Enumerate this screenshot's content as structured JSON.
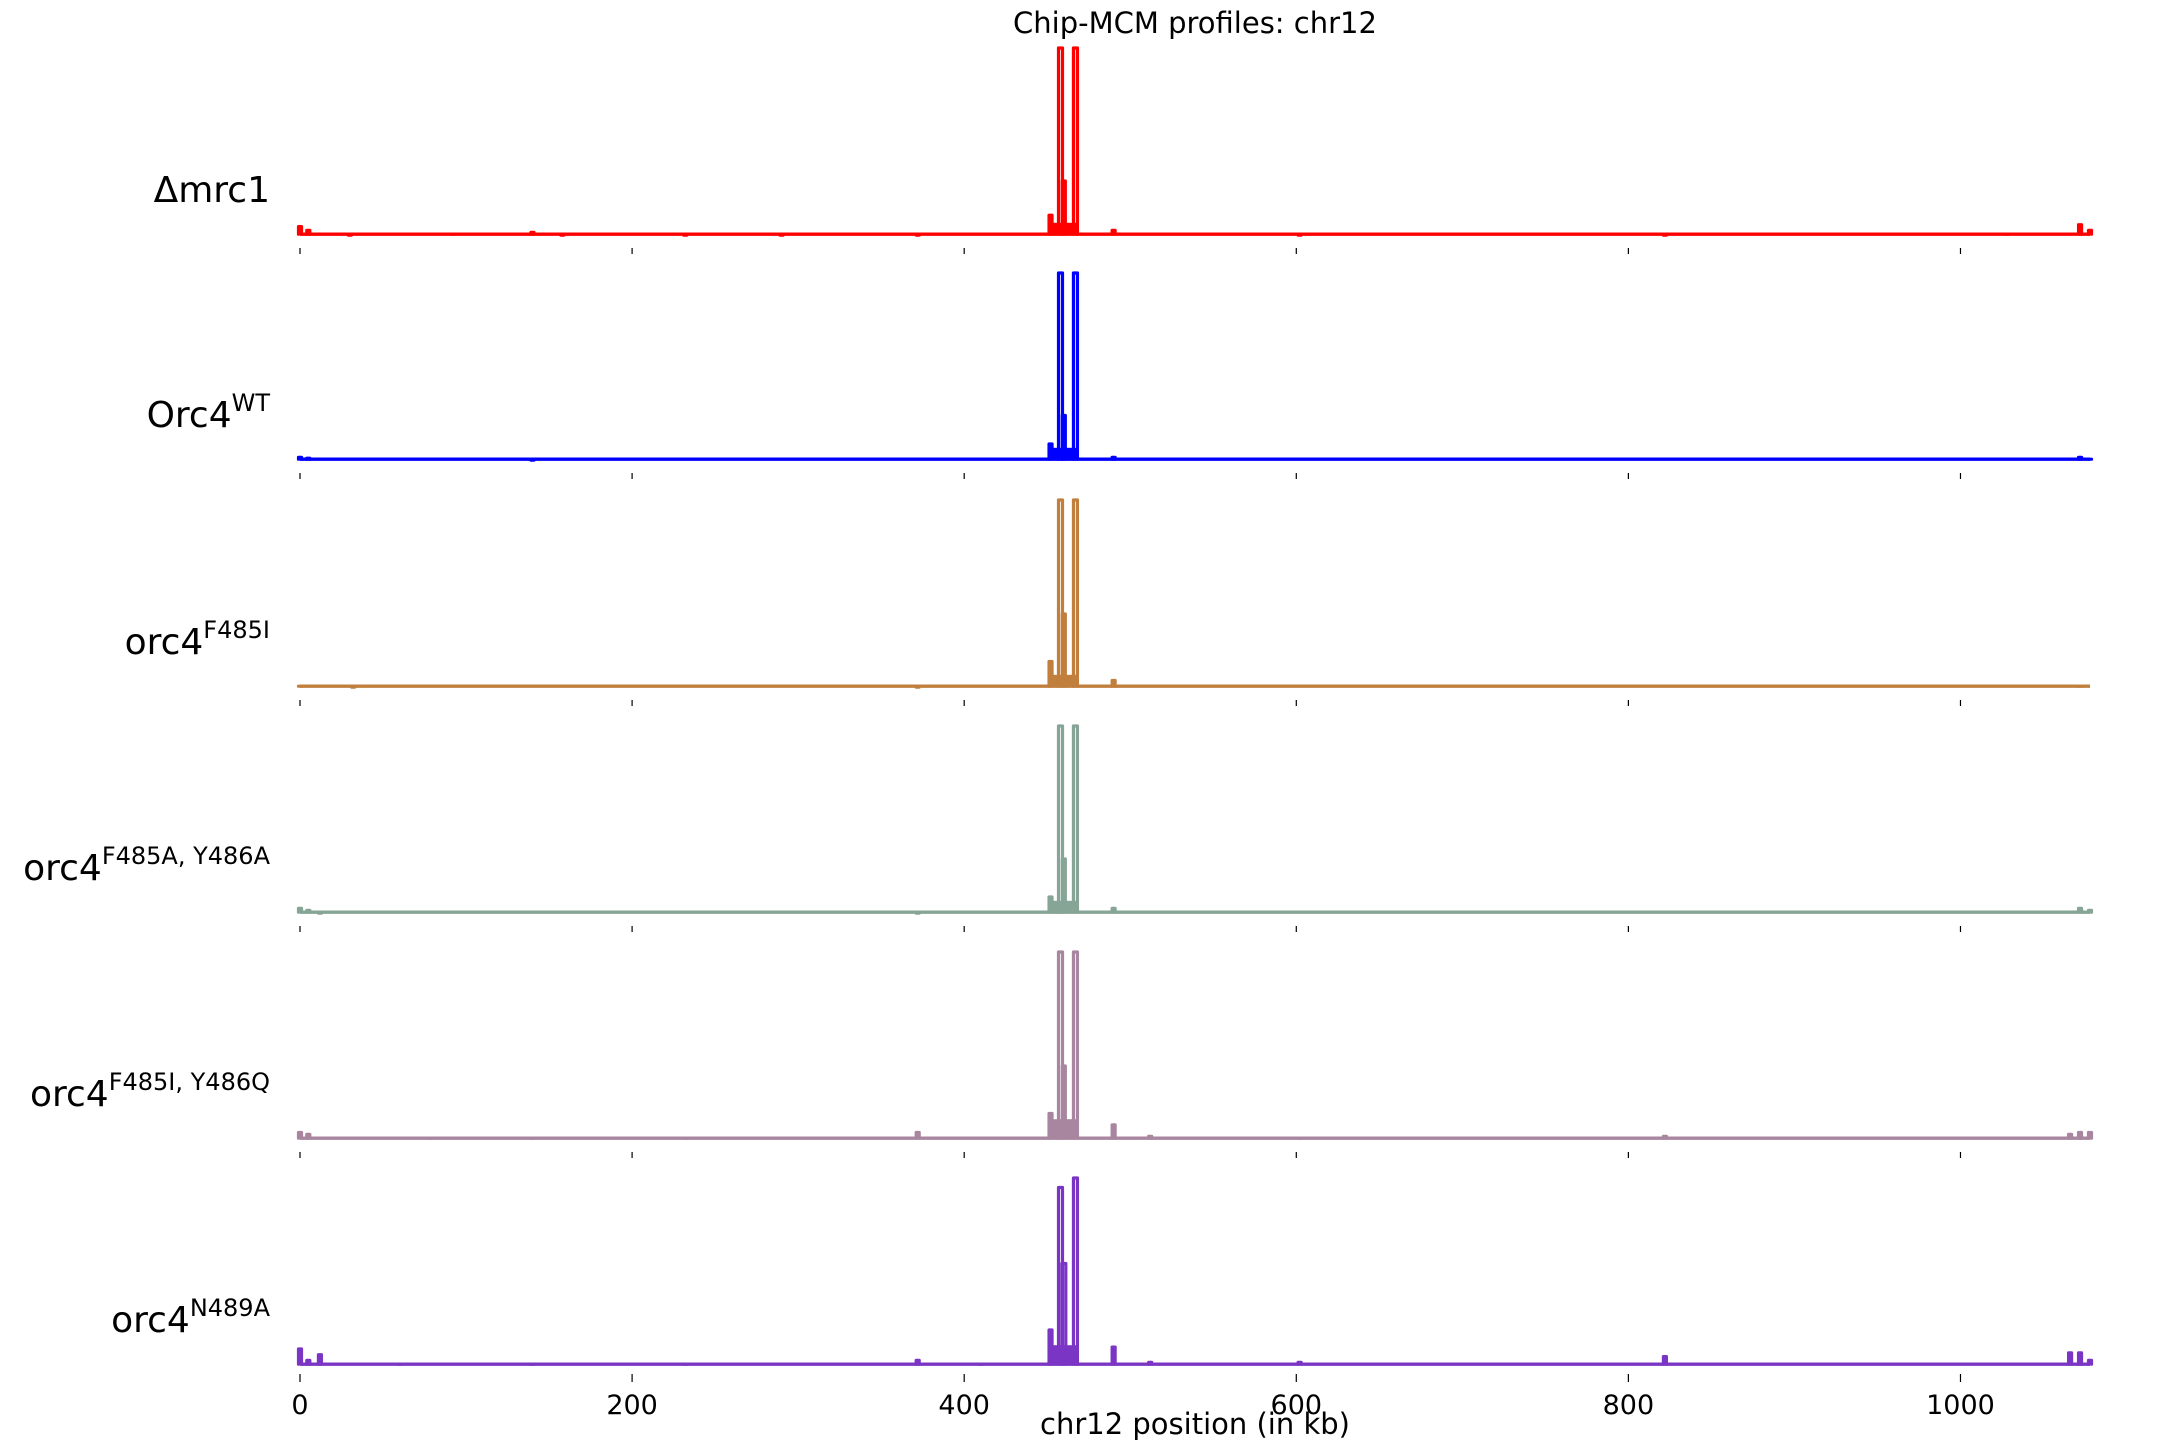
{
  "chart_data": {
    "type": "line",
    "title": "Chip-MCM profiles: chr12",
    "xlabel": "chr12 position (in kb)",
    "xlim": [
      0,
      1078
    ],
    "xticks": [
      0,
      200,
      400,
      600,
      800,
      1000
    ],
    "xtick_labels": [
      "0",
      "200",
      "400",
      "600",
      "800",
      "1000"
    ],
    "grid": false,
    "legend": "none",
    "tracks": [
      {
        "label_base": "Δmrc1",
        "label_sup": "",
        "color": "#ff0000",
        "baseline": 0.02,
        "peaks": [
          {
            "x": 0,
            "y": 0.06
          },
          {
            "x": 5,
            "y": 0.04
          },
          {
            "x": 30,
            "y": 0.015
          },
          {
            "x": 92,
            "y": 0.02
          },
          {
            "x": 140,
            "y": 0.03
          },
          {
            "x": 158,
            "y": 0.015
          },
          {
            "x": 232,
            "y": 0.015
          },
          {
            "x": 290,
            "y": 0.015
          },
          {
            "x": 372,
            "y": 0.015
          },
          {
            "x": 452,
            "y": 0.12
          },
          {
            "x": 458,
            "y": 1.0
          },
          {
            "x": 460,
            "y": 0.3
          },
          {
            "x": 467,
            "y": 1.0
          },
          {
            "x": 490,
            "y": 0.04
          },
          {
            "x": 602,
            "y": 0.015
          },
          {
            "x": 822,
            "y": 0.015
          },
          {
            "x": 1028,
            "y": 0.02
          },
          {
            "x": 1072,
            "y": 0.07
          },
          {
            "x": 1078,
            "y": 0.04
          }
        ]
      },
      {
        "label_base": "Orc4",
        "label_sup": "WT",
        "color": "#0000ff",
        "baseline": 0.02,
        "peaks": [
          {
            "x": 0,
            "y": 0.03
          },
          {
            "x": 5,
            "y": 0.025
          },
          {
            "x": 140,
            "y": 0.015
          },
          {
            "x": 452,
            "y": 0.1
          },
          {
            "x": 458,
            "y": 1.0
          },
          {
            "x": 460,
            "y": 0.25
          },
          {
            "x": 467,
            "y": 1.0
          },
          {
            "x": 490,
            "y": 0.03
          },
          {
            "x": 1072,
            "y": 0.03
          },
          {
            "x": 1078,
            "y": 0.02
          }
        ]
      },
      {
        "label_base": "orc4",
        "label_sup": "F485I",
        "color": "#c17f3e",
        "baseline": 0.02,
        "peaks": [
          {
            "x": 0,
            "y": 0.02
          },
          {
            "x": 32,
            "y": 0.015
          },
          {
            "x": 372,
            "y": 0.015
          },
          {
            "x": 452,
            "y": 0.15
          },
          {
            "x": 458,
            "y": 1.0
          },
          {
            "x": 460,
            "y": 0.4
          },
          {
            "x": 467,
            "y": 1.0
          },
          {
            "x": 490,
            "y": 0.05
          },
          {
            "x": 1072,
            "y": 0.02
          }
        ]
      },
      {
        "label_base": "orc4",
        "label_sup": "F485A, Y486A",
        "color": "#86a596",
        "baseline": 0.02,
        "peaks": [
          {
            "x": 0,
            "y": 0.04
          },
          {
            "x": 5,
            "y": 0.03
          },
          {
            "x": 12,
            "y": 0.015
          },
          {
            "x": 372,
            "y": 0.015
          },
          {
            "x": 452,
            "y": 0.1
          },
          {
            "x": 458,
            "y": 1.0
          },
          {
            "x": 460,
            "y": 0.3
          },
          {
            "x": 467,
            "y": 1.0
          },
          {
            "x": 490,
            "y": 0.04
          },
          {
            "x": 1072,
            "y": 0.04
          },
          {
            "x": 1078,
            "y": 0.03
          }
        ]
      },
      {
        "label_base": "orc4",
        "label_sup": "F485I, Y486Q",
        "color": "#a8869f",
        "baseline": 0.02,
        "peaks": [
          {
            "x": 0,
            "y": 0.05
          },
          {
            "x": 5,
            "y": 0.04
          },
          {
            "x": 78,
            "y": 0.02
          },
          {
            "x": 140,
            "y": 0.02
          },
          {
            "x": 232,
            "y": 0.02
          },
          {
            "x": 372,
            "y": 0.05
          },
          {
            "x": 452,
            "y": 0.15
          },
          {
            "x": 458,
            "y": 1.0
          },
          {
            "x": 460,
            "y": 0.4
          },
          {
            "x": 467,
            "y": 1.0
          },
          {
            "x": 490,
            "y": 0.09
          },
          {
            "x": 512,
            "y": 0.03
          },
          {
            "x": 602,
            "y": 0.02
          },
          {
            "x": 822,
            "y": 0.03
          },
          {
            "x": 1066,
            "y": 0.04
          },
          {
            "x": 1072,
            "y": 0.05
          },
          {
            "x": 1078,
            "y": 0.05
          }
        ]
      },
      {
        "label_base": "orc4",
        "label_sup": "N489A",
        "color": "#7b35c4",
        "baseline": 0.02,
        "peaks": [
          {
            "x": 0,
            "y": 0.1
          },
          {
            "x": 5,
            "y": 0.04
          },
          {
            "x": 12,
            "y": 0.07
          },
          {
            "x": 60,
            "y": 0.02
          },
          {
            "x": 140,
            "y": 0.02
          },
          {
            "x": 232,
            "y": 0.02
          },
          {
            "x": 372,
            "y": 0.04
          },
          {
            "x": 410,
            "y": 0.02
          },
          {
            "x": 452,
            "y": 0.2
          },
          {
            "x": 458,
            "y": 0.95
          },
          {
            "x": 460,
            "y": 0.55
          },
          {
            "x": 467,
            "y": 1.0
          },
          {
            "x": 490,
            "y": 0.11
          },
          {
            "x": 512,
            "y": 0.03
          },
          {
            "x": 602,
            "y": 0.03
          },
          {
            "x": 822,
            "y": 0.06
          },
          {
            "x": 1066,
            "y": 0.08
          },
          {
            "x": 1072,
            "y": 0.08
          },
          {
            "x": 1078,
            "y": 0.04
          }
        ]
      }
    ]
  }
}
